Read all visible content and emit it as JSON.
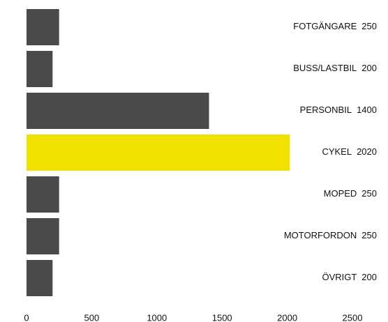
{
  "chart_data": {
    "type": "bar",
    "orientation": "horizontal",
    "categories": [
      "FOTGÄNGARE",
      "BUSS/LASTBIL",
      "PERSONBIL",
      "CYKEL",
      "MOPED",
      "MOTORFORDON",
      "ÖVRIGT"
    ],
    "values": [
      250,
      200,
      1400,
      2020,
      250,
      250,
      200
    ],
    "colors": [
      "#4a4a4a",
      "#4a4a4a",
      "#4a4a4a",
      "#f0e100",
      "#4a4a4a",
      "#4a4a4a",
      "#4a4a4a"
    ],
    "xlim": [
      0,
      2500
    ],
    "xticks": [
      0,
      500,
      1000,
      1500,
      2000,
      2500
    ],
    "grid": false
  }
}
